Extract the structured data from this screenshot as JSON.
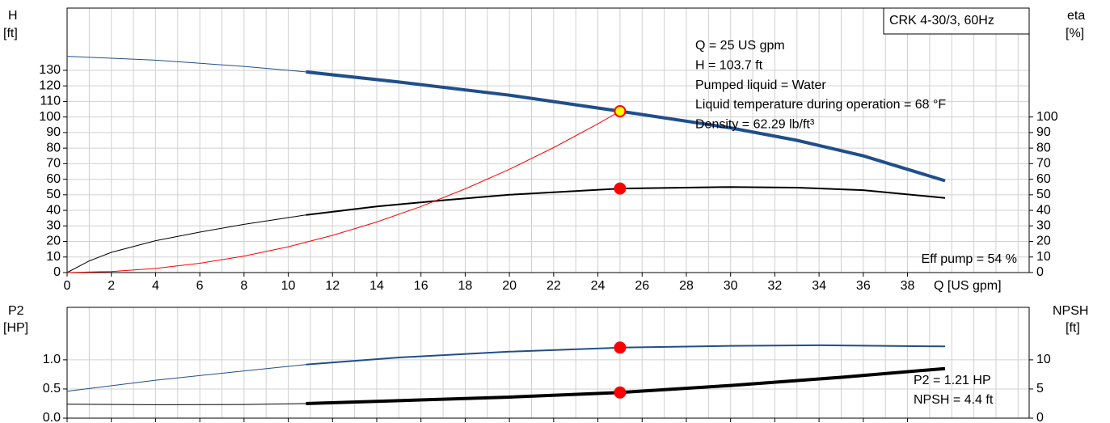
{
  "chart_data": [
    {
      "type": "line",
      "title": "CRK 4-30/3, 60Hz",
      "ylabel": "H",
      "yunit": "[ft]",
      "y2label": "eta",
      "y2unit": "[%]",
      "xlabel": "Q [US gpm]",
      "xlim": [
        0,
        43.5
      ],
      "xticks": [
        0,
        2,
        4,
        6,
        8,
        10,
        12,
        14,
        16,
        18,
        20,
        22,
        24,
        26,
        28,
        30,
        32,
        34,
        36,
        38
      ],
      "ylim": [
        0,
        170
      ],
      "yticks": [
        0,
        10,
        20,
        30,
        40,
        50,
        60,
        70,
        80,
        90,
        100,
        110,
        120,
        130
      ],
      "y2lim": [
        0,
        170
      ],
      "y2ticks": [
        0,
        10,
        20,
        30,
        40,
        50,
        60,
        70,
        80,
        90,
        100
      ],
      "grid": true,
      "minor_grid": true,
      "series": [
        {
          "color": "#1f4e8c",
          "line_width": 1,
          "x": [
            0,
            4,
            8,
            10.8
          ],
          "values": [
            139,
            136.5,
            132.5,
            129
          ]
        },
        {
          "color": "#1f4e8c",
          "line_width": 4,
          "x": [
            10.8,
            15,
            20,
            25,
            30,
            33,
            36,
            39.7
          ],
          "values": [
            129,
            122.5,
            114,
            103.7,
            93,
            85,
            75,
            59
          ]
        },
        {
          "color": "#000000",
          "line_width": 1,
          "axis": "y2",
          "x": [
            0,
            1,
            2,
            4,
            6,
            8,
            10.8
          ],
          "values": [
            0,
            7.5,
            13,
            20.5,
            26,
            31,
            37
          ]
        },
        {
          "color": "#000000",
          "line_width": 2,
          "axis": "y2",
          "x": [
            10.8,
            14,
            17,
            20,
            25,
            30,
            33,
            36,
            39.7
          ],
          "values": [
            37,
            42.5,
            46.5,
            50,
            54,
            55,
            54.6,
            53,
            48
          ]
        },
        {
          "color": "#ff0000",
          "line_width": 1,
          "x": [
            0,
            2,
            4,
            6,
            8,
            10,
            12,
            14,
            16,
            18,
            20,
            22,
            24,
            25
          ],
          "values": [
            0,
            0.66,
            2.65,
            5.97,
            10.6,
            16.6,
            23.9,
            32.5,
            42.5,
            53.8,
            66.4,
            80.3,
            95.6,
            103.7
          ]
        }
      ],
      "points": [
        {
          "x": 25,
          "y": 103.7,
          "color": "#ffff00",
          "stroke": "#ff0000"
        },
        {
          "x": 25,
          "y": 54,
          "axis": "y2",
          "color": "#ff0000",
          "stroke": "#ff0000"
        }
      ],
      "annotations": [
        "Q = 25 US gpm",
        "H = 103.7 ft",
        "Pumped liquid = Water",
        "Liquid temperature during operation = 68 °F",
        "Density = 62.29 lb/ft³"
      ],
      "eff_label": "Eff pump = 54 %"
    },
    {
      "type": "line",
      "ylabel": "P2",
      "yunit": "[HP]",
      "y2label": "NPSH",
      "y2unit": "[ft]",
      "xlim": [
        0,
        43.5
      ],
      "xticks": [
        0,
        2,
        4,
        6,
        8,
        10,
        12,
        14,
        16,
        18,
        20,
        22,
        24,
        26,
        28,
        30,
        32,
        34,
        36,
        38
      ],
      "ylim": [
        0,
        1.9
      ],
      "yticks": [
        {
          "value": 0,
          "label": "0.0"
        },
        0.5,
        {
          "value": 1,
          "label": "1.0"
        }
      ],
      "y2lim": [
        0,
        19
      ],
      "y2ticks": [
        0,
        5,
        10
      ],
      "grid": true,
      "minor_grid": true,
      "series": [
        {
          "color": "#1f4e8c",
          "line_width": 1,
          "x": [
            0,
            4,
            8,
            10.8
          ],
          "values": [
            0.46,
            0.65,
            0.81,
            0.92
          ]
        },
        {
          "color": "#1f4e8c",
          "line_width": 2,
          "x": [
            10.8,
            15,
            20,
            25,
            30,
            34,
            39.7
          ],
          "values": [
            0.92,
            1.04,
            1.14,
            1.21,
            1.24,
            1.25,
            1.23
          ]
        },
        {
          "color": "#000000",
          "line_width": 1,
          "axis": "y2",
          "x": [
            0,
            4,
            8,
            10.8
          ],
          "values": [
            2.4,
            2.3,
            2.35,
            2.5
          ]
        },
        {
          "color": "#000000",
          "line_width": 4,
          "axis": "y2",
          "x": [
            10.8,
            15,
            20,
            25,
            30,
            35,
            39.7
          ],
          "values": [
            2.5,
            3.0,
            3.6,
            4.4,
            5.6,
            7.0,
            8.5
          ]
        }
      ],
      "points": [
        {
          "x": 25,
          "y": 1.21,
          "color": "#ff0000",
          "stroke": "#ff0000"
        },
        {
          "x": 25,
          "y": 4.4,
          "axis": "y2",
          "color": "#ff0000",
          "stroke": "#ff0000"
        }
      ],
      "annotations": [
        "P2 = 1.21 HP",
        "NPSH = 4.4 ft"
      ]
    }
  ]
}
